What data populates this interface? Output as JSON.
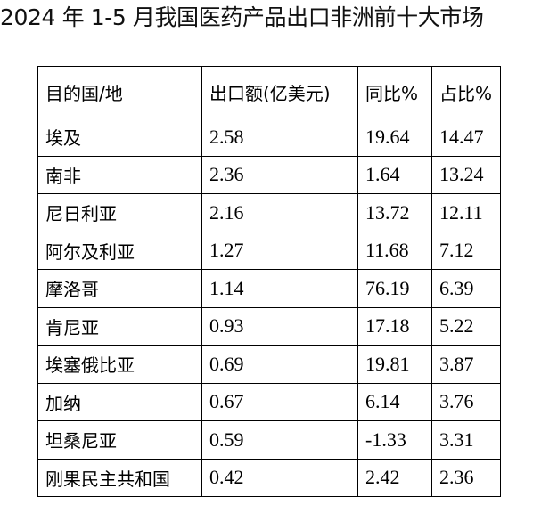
{
  "title": "2024 年 1-5 月我国医药产品出口非洲前十大市场",
  "table": {
    "headers": [
      "目的国/地",
      "出口额(亿美元)",
      "同比%",
      "占比%"
    ],
    "rows": [
      [
        "埃及",
        "2.58",
        "19.64",
        "14.47"
      ],
      [
        "南非",
        "2.36",
        "1.64",
        "13.24"
      ],
      [
        "尼日利亚",
        "2.16",
        "13.72",
        "12.11"
      ],
      [
        "阿尔及利亚",
        "1.27",
        "11.68",
        "7.12"
      ],
      [
        "摩洛哥",
        "1.14",
        "76.19",
        "6.39"
      ],
      [
        "肯尼亚",
        "0.93",
        "17.18",
        "5.22"
      ],
      [
        "埃塞俄比亚",
        "0.69",
        "19.81",
        "3.87"
      ],
      [
        "加纳",
        "0.67",
        "6.14",
        "3.76"
      ],
      [
        "坦桑尼亚",
        "0.59",
        "-1.33",
        "3.31"
      ],
      [
        "刚果民主共和国",
        "0.42",
        "2.42",
        "2.36"
      ]
    ]
  }
}
